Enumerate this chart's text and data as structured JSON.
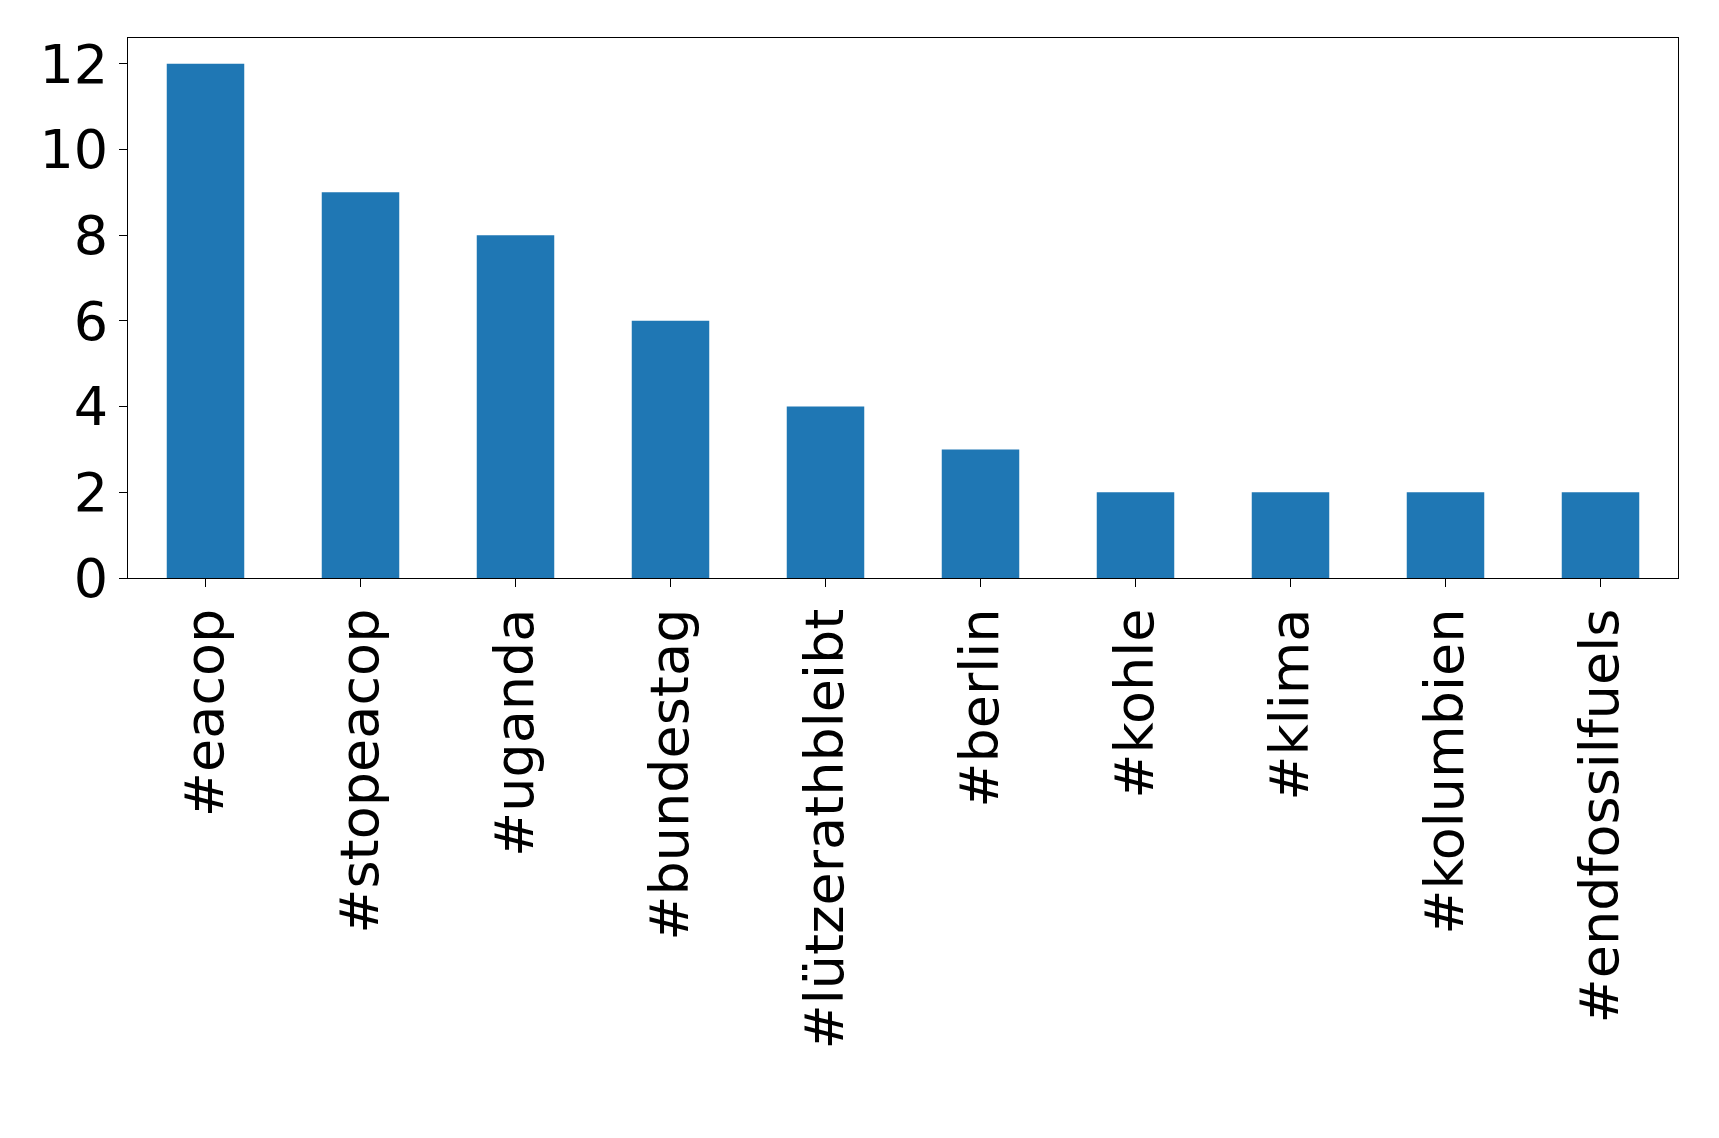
{
  "chart_data": {
    "type": "bar",
    "categories": [
      "#eacop",
      "#stopeacop",
      "#uganda",
      "#bundestag",
      "#lützerathbleibt",
      "#berlin",
      "#kohle",
      "#klima",
      "#kolumbien",
      "#endfossilfuels"
    ],
    "values": [
      12,
      9,
      8,
      6,
      4,
      3,
      2,
      2,
      2,
      2
    ],
    "color": "#1f77b4",
    "ylim": [
      0,
      12.6
    ],
    "yticks": [
      0,
      2,
      4,
      6,
      8,
      10,
      12
    ]
  }
}
